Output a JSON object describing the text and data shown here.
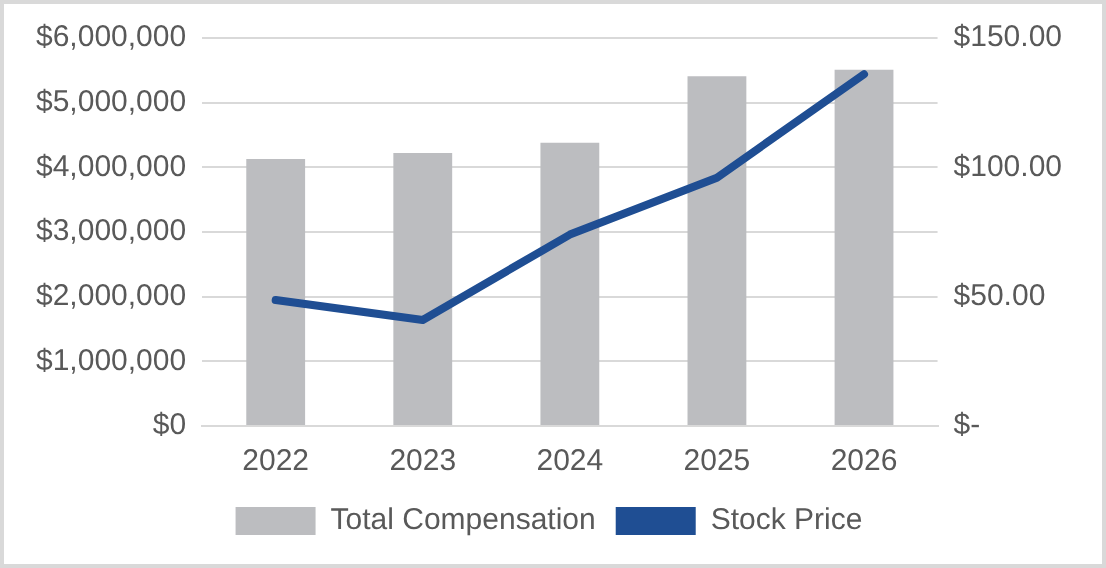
{
  "chart_data": {
    "type": "bar",
    "categories": [
      "2022",
      "2023",
      "2024",
      "2025",
      "2026"
    ],
    "series": [
      {
        "name": "Total Compensation",
        "color": "#bcbdc0",
        "values": [
          4130000,
          4220000,
          4380000,
          5410000,
          5510000
        ]
      },
      {
        "name": "Stock Price",
        "type": "line",
        "axis": "y2",
        "color": "#1f4e93",
        "values": [
          48.7,
          41,
          74,
          96,
          136
        ]
      }
    ],
    "ylim": [
      0,
      6000000
    ],
    "yticks": [
      {
        "value": 0,
        "label": "$0"
      },
      {
        "value": 1000000,
        "label": "$1,000,000"
      },
      {
        "value": 2000000,
        "label": "$2,000,000"
      },
      {
        "value": 3000000,
        "label": "$3,000,000"
      },
      {
        "value": 4000000,
        "label": "$4,000,000"
      },
      {
        "value": 5000000,
        "label": "$5,000,000"
      },
      {
        "value": 6000000,
        "label": "$6,000,000"
      }
    ],
    "y2lim": [
      0,
      150
    ],
    "y2ticks": [
      {
        "value": 0,
        "label": "$-"
      },
      {
        "value": 50,
        "label": "$50.00"
      },
      {
        "value": 100,
        "label": "$100.00"
      },
      {
        "value": 150,
        "label": "$150.00"
      }
    ],
    "grid": "y",
    "legend": "bottom",
    "marker": "none"
  }
}
